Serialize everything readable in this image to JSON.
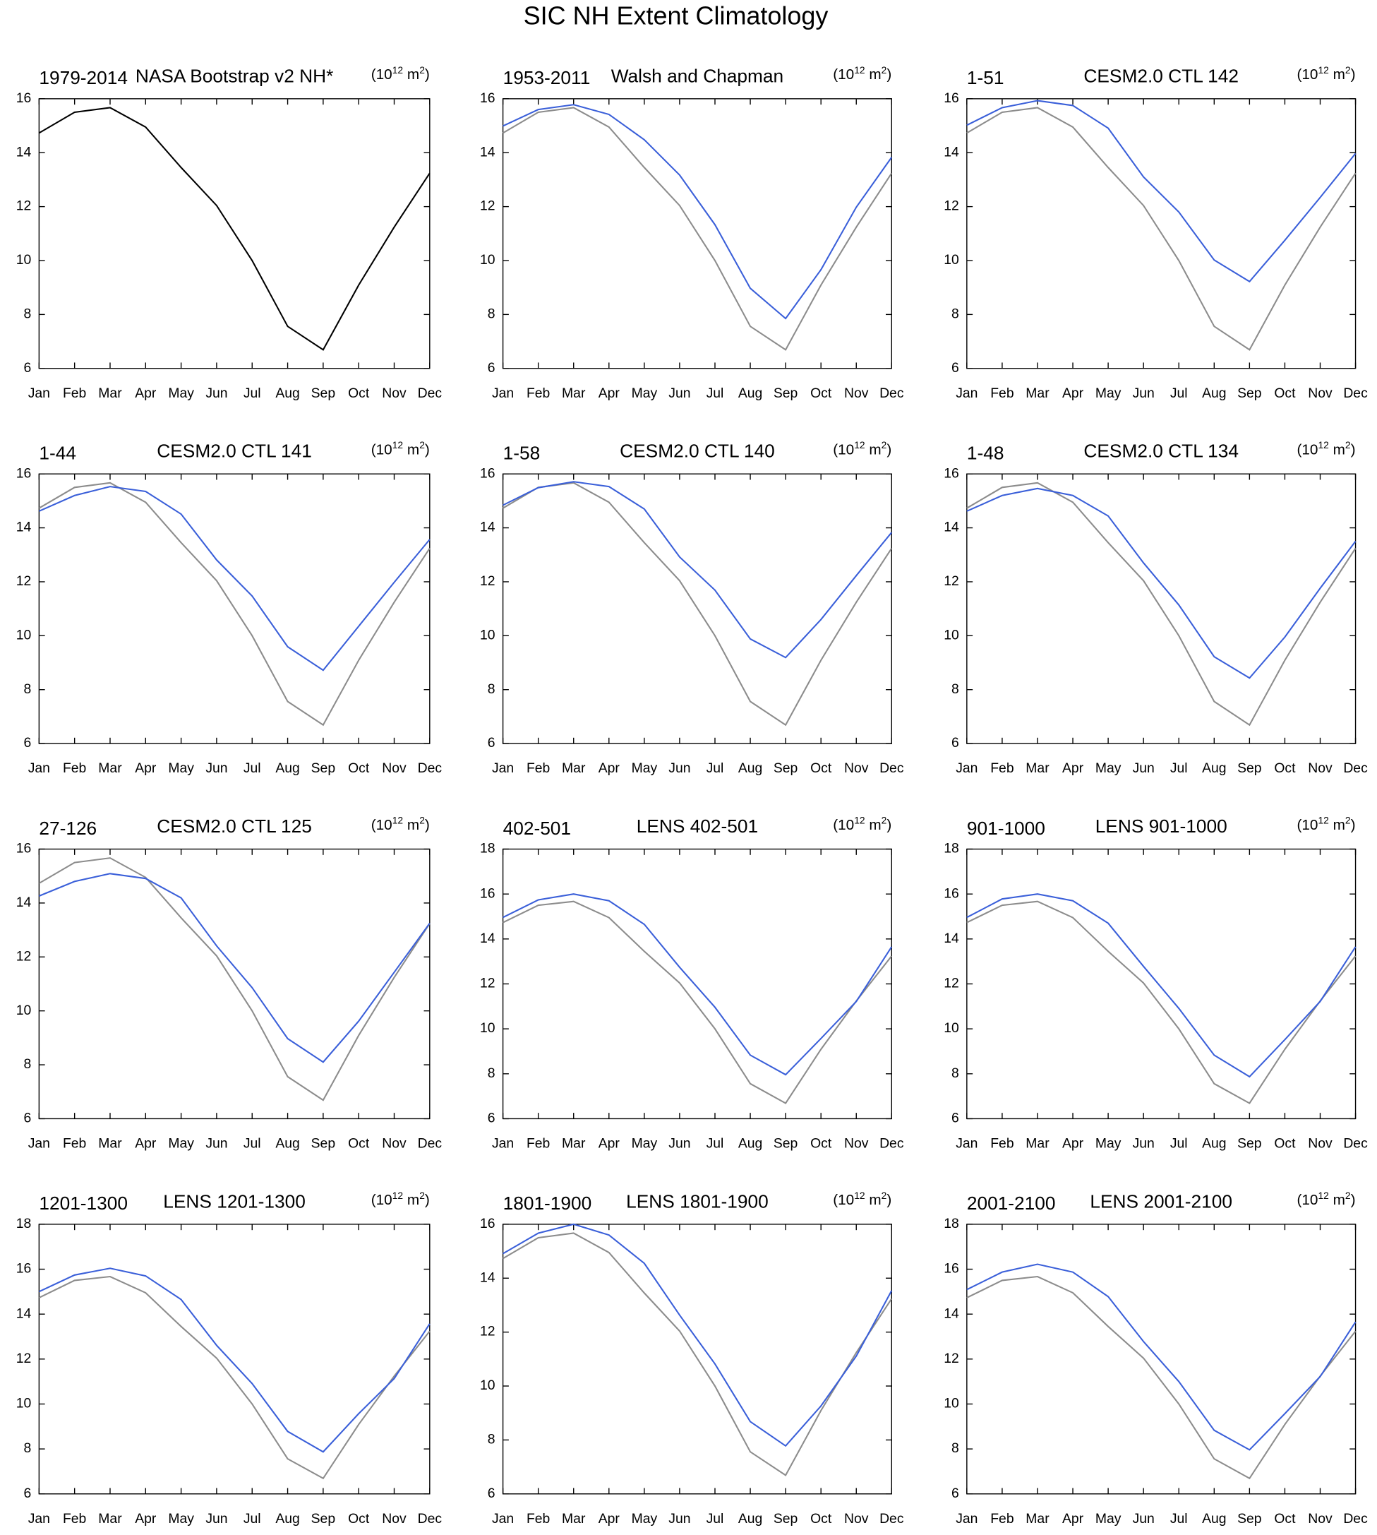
{
  "title": "SIC NH Extent Climatology",
  "chart_data": [
    {
      "type": "line",
      "left": "1979-2014",
      "title": "NASA Bootstrap v2 NH*",
      "units": [
        {
          "text": "(10"
        },
        {
          "sup": "12"
        },
        {
          "text": " m"
        },
        {
          "sup": "2"
        },
        {
          "text": ")"
        }
      ],
      "categories": [
        "Jan",
        "Feb",
        "Mar",
        "Apr",
        "May",
        "Jun",
        "Jul",
        "Aug",
        "Sep",
        "Oct",
        "Nov",
        "Dec"
      ],
      "ylim": [
        6,
        16
      ],
      "yticks": [
        6,
        8,
        10,
        12,
        14,
        16
      ],
      "series": [
        {
          "color": "#000000",
          "values": [
            14.73,
            15.5,
            15.67,
            14.95,
            13.45,
            12.04,
            10.0,
            7.56,
            6.69,
            9.09,
            11.24,
            13.24
          ]
        }
      ]
    },
    {
      "type": "line",
      "left": "1953-2011",
      "title": "Walsh and Chapman",
      "units": [
        {
          "text": "(10"
        },
        {
          "sup": "12"
        },
        {
          "text": " m"
        },
        {
          "sup": "2"
        },
        {
          "text": ")"
        }
      ],
      "categories": [
        "Jan",
        "Feb",
        "Mar",
        "Apr",
        "May",
        "Jun",
        "Jul",
        "Aug",
        "Sep",
        "Oct",
        "Nov",
        "Dec"
      ],
      "ylim": [
        6,
        16
      ],
      "yticks": [
        6,
        8,
        10,
        12,
        14,
        16
      ],
      "series": [
        {
          "color": "#8c8c8c",
          "values": [
            14.73,
            15.5,
            15.67,
            14.95,
            13.45,
            12.04,
            10.0,
            7.56,
            6.69,
            9.09,
            11.24,
            13.24
          ]
        },
        {
          "color": "#3a5fd9",
          "values": [
            14.99,
            15.6,
            15.78,
            15.42,
            14.48,
            13.17,
            11.33,
            8.97,
            7.85,
            9.66,
            11.98,
            13.83
          ]
        }
      ]
    },
    {
      "type": "line",
      "left": "1-51",
      "title": "CESM2.0 CTL 142",
      "units": [
        {
          "text": "(10"
        },
        {
          "sup": "12"
        },
        {
          "text": " m"
        },
        {
          "sup": "2"
        },
        {
          "text": ")"
        }
      ],
      "categories": [
        "Jan",
        "Feb",
        "Mar",
        "Apr",
        "May",
        "Jun",
        "Jul",
        "Aug",
        "Sep",
        "Oct",
        "Nov",
        "Dec"
      ],
      "ylim": [
        6,
        16
      ],
      "yticks": [
        6,
        8,
        10,
        12,
        14,
        16
      ],
      "series": [
        {
          "color": "#8c8c8c",
          "values": [
            14.73,
            15.5,
            15.67,
            14.95,
            13.45,
            12.04,
            10.0,
            7.56,
            6.69,
            9.09,
            11.24,
            13.24
          ]
        },
        {
          "color": "#3a5fd9",
          "values": [
            15.02,
            15.67,
            15.93,
            15.75,
            14.91,
            13.1,
            11.8,
            10.02,
            9.22,
            10.75,
            12.34,
            13.97
          ]
        }
      ]
    },
    {
      "type": "line",
      "left": "1-44",
      "title": "CESM2.0 CTL 141",
      "units": [
        {
          "text": "(10"
        },
        {
          "sup": "12"
        },
        {
          "text": " m"
        },
        {
          "sup": "2"
        },
        {
          "text": ")"
        }
      ],
      "categories": [
        "Jan",
        "Feb",
        "Mar",
        "Apr",
        "May",
        "Jun",
        "Jul",
        "Aug",
        "Sep",
        "Oct",
        "Nov",
        "Dec"
      ],
      "ylim": [
        6,
        16
      ],
      "yticks": [
        6,
        8,
        10,
        12,
        14,
        16
      ],
      "series": [
        {
          "color": "#8c8c8c",
          "values": [
            14.73,
            15.5,
            15.67,
            14.95,
            13.45,
            12.04,
            10.0,
            7.56,
            6.69,
            9.09,
            11.24,
            13.24
          ]
        },
        {
          "color": "#3a5fd9",
          "values": [
            14.62,
            15.2,
            15.53,
            15.35,
            14.51,
            12.81,
            11.47,
            9.59,
            8.72,
            10.35,
            11.98,
            13.57
          ]
        }
      ]
    },
    {
      "type": "line",
      "left": "1-58",
      "title": "CESM2.0 CTL 140",
      "units": [
        {
          "text": "(10"
        },
        {
          "sup": "12"
        },
        {
          "text": " m"
        },
        {
          "sup": "2"
        },
        {
          "text": ")"
        }
      ],
      "categories": [
        "Jan",
        "Feb",
        "Mar",
        "Apr",
        "May",
        "Jun",
        "Jul",
        "Aug",
        "Sep",
        "Oct",
        "Nov",
        "Dec"
      ],
      "ylim": [
        6,
        16
      ],
      "yticks": [
        6,
        8,
        10,
        12,
        14,
        16
      ],
      "series": [
        {
          "color": "#8c8c8c",
          "values": [
            14.73,
            15.5,
            15.67,
            14.95,
            13.45,
            12.04,
            10.0,
            7.56,
            6.69,
            9.09,
            11.24,
            13.24
          ]
        },
        {
          "color": "#3a5fd9",
          "values": [
            14.84,
            15.49,
            15.71,
            15.53,
            14.7,
            12.92,
            11.69,
            9.88,
            9.19,
            10.6,
            12.23,
            13.83
          ]
        }
      ]
    },
    {
      "type": "line",
      "left": "1-48",
      "title": "CESM2.0 CTL 134",
      "units": [
        {
          "text": "(10"
        },
        {
          "sup": "12"
        },
        {
          "text": " m"
        },
        {
          "sup": "2"
        },
        {
          "text": ")"
        }
      ],
      "categories": [
        "Jan",
        "Feb",
        "Mar",
        "Apr",
        "May",
        "Jun",
        "Jul",
        "Aug",
        "Sep",
        "Oct",
        "Nov",
        "Dec"
      ],
      "ylim": [
        6,
        16
      ],
      "yticks": [
        6,
        8,
        10,
        12,
        14,
        16
      ],
      "series": [
        {
          "color": "#8c8c8c",
          "values": [
            14.73,
            15.5,
            15.67,
            14.95,
            13.45,
            12.04,
            10.0,
            7.56,
            6.69,
            9.09,
            11.24,
            13.24
          ]
        },
        {
          "color": "#3a5fd9",
          "values": [
            14.62,
            15.2,
            15.46,
            15.2,
            14.44,
            12.7,
            11.14,
            9.22,
            8.43,
            9.95,
            11.76,
            13.5
          ]
        }
      ]
    },
    {
      "type": "line",
      "left": "27-126",
      "title": "CESM2.0 CTL 125",
      "units": [
        {
          "text": "(10"
        },
        {
          "sup": "12"
        },
        {
          "text": " m"
        },
        {
          "sup": "2"
        },
        {
          "text": ")"
        }
      ],
      "categories": [
        "Jan",
        "Feb",
        "Mar",
        "Apr",
        "May",
        "Jun",
        "Jul",
        "Aug",
        "Sep",
        "Oct",
        "Nov",
        "Dec"
      ],
      "ylim": [
        6,
        16
      ],
      "yticks": [
        6,
        8,
        10,
        12,
        14,
        16
      ],
      "series": [
        {
          "color": "#8c8c8c",
          "values": [
            14.73,
            15.5,
            15.67,
            14.95,
            13.45,
            12.04,
            10.0,
            7.56,
            6.69,
            9.09,
            11.24,
            13.24
          ]
        },
        {
          "color": "#3a5fd9",
          "values": [
            14.26,
            14.8,
            15.09,
            14.91,
            14.19,
            12.41,
            10.86,
            8.97,
            8.1,
            9.62,
            11.43,
            13.25
          ]
        }
      ]
    },
    {
      "type": "line",
      "left": "402-501",
      "title": "LENS 402-501",
      "units": [
        {
          "text": "(10"
        },
        {
          "sup": "12"
        },
        {
          "text": " m"
        },
        {
          "sup": "2"
        },
        {
          "text": ")"
        }
      ],
      "categories": [
        "Jan",
        "Feb",
        "Mar",
        "Apr",
        "May",
        "Jun",
        "Jul",
        "Aug",
        "Sep",
        "Oct",
        "Nov",
        "Dec"
      ],
      "ylim": [
        6,
        18
      ],
      "yticks": [
        6,
        8,
        10,
        12,
        14,
        16,
        18
      ],
      "series": [
        {
          "color": "#8c8c8c",
          "values": [
            14.73,
            15.5,
            15.67,
            14.95,
            13.45,
            12.04,
            10.0,
            7.56,
            6.69,
            9.09,
            11.24,
            13.24
          ]
        },
        {
          "color": "#3a5fd9",
          "values": [
            14.96,
            15.74,
            16.0,
            15.7,
            14.65,
            12.74,
            10.96,
            8.83,
            7.96,
            9.57,
            11.22,
            13.65
          ]
        }
      ]
    },
    {
      "type": "line",
      "left": "901-1000",
      "title": "LENS 901-1000",
      "units": [
        {
          "text": "(10"
        },
        {
          "sup": "12"
        },
        {
          "text": " m"
        },
        {
          "sup": "2"
        },
        {
          "text": ")"
        }
      ],
      "categories": [
        "Jan",
        "Feb",
        "Mar",
        "Apr",
        "May",
        "Jun",
        "Jul",
        "Aug",
        "Sep",
        "Oct",
        "Nov",
        "Dec"
      ],
      "ylim": [
        6,
        18
      ],
      "yticks": [
        6,
        8,
        10,
        12,
        14,
        16,
        18
      ],
      "series": [
        {
          "color": "#8c8c8c",
          "values": [
            14.73,
            15.5,
            15.67,
            14.95,
            13.45,
            12.04,
            10.0,
            7.56,
            6.69,
            9.09,
            11.24,
            13.24
          ]
        },
        {
          "color": "#3a5fd9",
          "values": [
            14.96,
            15.78,
            16.0,
            15.7,
            14.7,
            12.78,
            10.91,
            8.83,
            7.87,
            9.52,
            11.22,
            13.65
          ]
        }
      ]
    },
    {
      "type": "line",
      "left": "1201-1300",
      "title": "LENS 1201-1300",
      "units": [
        {
          "text": "(10"
        },
        {
          "sup": "12"
        },
        {
          "text": " m"
        },
        {
          "sup": "2"
        },
        {
          "text": ")"
        }
      ],
      "categories": [
        "Jan",
        "Feb",
        "Mar",
        "Apr",
        "May",
        "Jun",
        "Jul",
        "Aug",
        "Sep",
        "Oct",
        "Nov",
        "Dec"
      ],
      "ylim": [
        6,
        18
      ],
      "yticks": [
        6,
        8,
        10,
        12,
        14,
        16,
        18
      ],
      "series": [
        {
          "color": "#8c8c8c",
          "values": [
            14.73,
            15.5,
            15.67,
            14.95,
            13.45,
            12.04,
            10.0,
            7.56,
            6.69,
            9.09,
            11.24,
            13.24
          ]
        },
        {
          "color": "#3a5fd9",
          "values": [
            15.0,
            15.74,
            16.04,
            15.7,
            14.65,
            12.61,
            10.91,
            8.78,
            7.87,
            9.57,
            11.13,
            13.57
          ]
        }
      ]
    },
    {
      "type": "line",
      "left": "1801-1900",
      "title": "LENS 1801-1900",
      "units": [
        {
          "text": "(10"
        },
        {
          "sup": "12"
        },
        {
          "text": " m"
        },
        {
          "sup": "2"
        },
        {
          "text": ")"
        }
      ],
      "categories": [
        "Jan",
        "Feb",
        "Mar",
        "Apr",
        "May",
        "Jun",
        "Jul",
        "Aug",
        "Sep",
        "Oct",
        "Nov",
        "Dec"
      ],
      "ylim": [
        6,
        16
      ],
      "yticks": [
        6,
        8,
        10,
        12,
        14,
        16
      ],
      "series": [
        {
          "color": "#8c8c8c",
          "values": [
            14.73,
            15.5,
            15.67,
            14.95,
            13.45,
            12.04,
            10.0,
            7.56,
            6.69,
            9.09,
            11.24,
            13.24
          ]
        },
        {
          "color": "#3a5fd9",
          "values": [
            14.91,
            15.67,
            16.0,
            15.6,
            14.55,
            12.63,
            10.82,
            8.68,
            7.78,
            9.26,
            11.11,
            13.54
          ]
        }
      ]
    },
    {
      "type": "line",
      "left": "2001-2100",
      "title": "LENS 2001-2100",
      "units": [
        {
          "text": "(10"
        },
        {
          "sup": "12"
        },
        {
          "text": " m"
        },
        {
          "sup": "2"
        },
        {
          "text": ")"
        }
      ],
      "categories": [
        "Jan",
        "Feb",
        "Mar",
        "Apr",
        "May",
        "Jun",
        "Jul",
        "Aug",
        "Sep",
        "Oct",
        "Nov",
        "Dec"
      ],
      "ylim": [
        6,
        18
      ],
      "yticks": [
        6,
        8,
        10,
        12,
        14,
        16,
        18
      ],
      "series": [
        {
          "color": "#8c8c8c",
          "values": [
            14.73,
            15.5,
            15.67,
            14.95,
            13.45,
            12.04,
            10.0,
            7.56,
            6.69,
            9.09,
            11.24,
            13.24
          ]
        },
        {
          "color": "#3a5fd9",
          "values": [
            15.09,
            15.87,
            16.22,
            15.87,
            14.78,
            12.78,
            11.0,
            8.83,
            7.96,
            9.57,
            11.22,
            13.65
          ]
        }
      ]
    }
  ]
}
